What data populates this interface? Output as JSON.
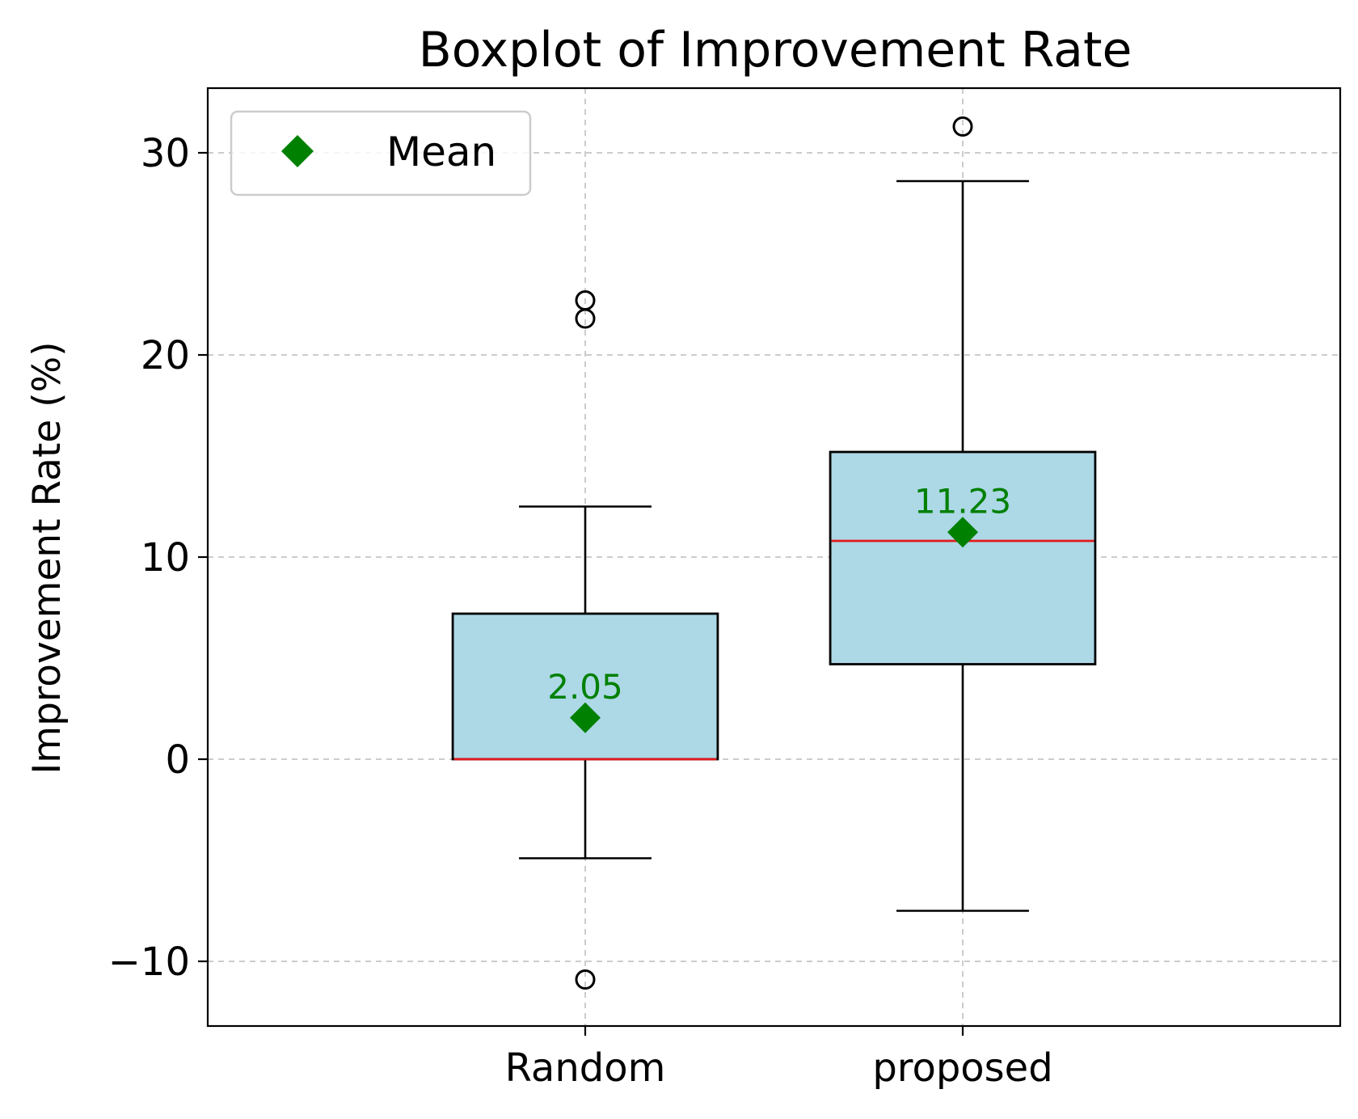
{
  "chart_data": {
    "type": "boxplot",
    "title": "Boxplot of Improvement Rate",
    "xlabel": "",
    "ylabel": "Improvement Rate (%)",
    "ylim": [
      -13.2,
      33.2
    ],
    "yticks": [
      -10,
      0,
      10,
      20,
      30
    ],
    "ytick_labels": [
      "−10",
      "0",
      "10",
      "20",
      "30"
    ],
    "grid": true,
    "legend": {
      "position": "top-left",
      "entries": [
        {
          "label": "Mean",
          "marker": "diamond",
          "color": "#008000"
        }
      ]
    },
    "categories": [
      "Random",
      "proposed"
    ],
    "boxes": [
      {
        "label": "Random",
        "whislo": -4.9,
        "q1": 0.0,
        "median": 0.0,
        "q3": 7.2,
        "whishi": 12.5,
        "mean": 2.05,
        "mean_label": "2.05",
        "fliers": [
          22.7,
          21.8,
          -10.9
        ]
      },
      {
        "label": "proposed",
        "whislo": -7.5,
        "q1": 4.7,
        "median": 10.8,
        "q3": 15.2,
        "whishi": 28.6,
        "mean": 11.23,
        "mean_label": "11.23",
        "fliers": [
          31.3
        ]
      }
    ],
    "colors": {
      "box_fill": "#add8e6",
      "median": "#e31a1c",
      "mean": "#008000",
      "grid": "#cccccc",
      "edge": "#000000"
    }
  }
}
